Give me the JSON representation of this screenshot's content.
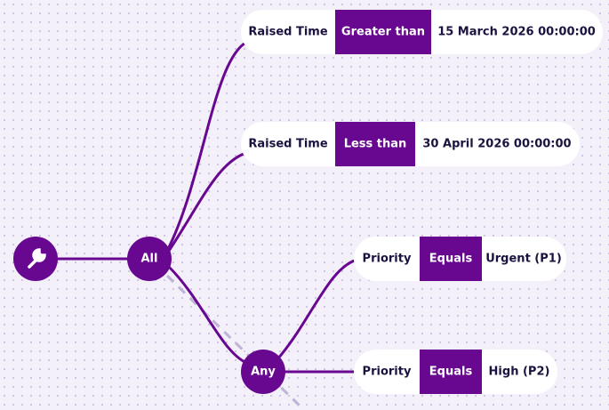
{
  "root": {
    "icon": "wrench"
  },
  "groups": [
    {
      "label": "All"
    },
    {
      "label": "Any"
    }
  ],
  "conditions": [
    {
      "field": "Raised Time",
      "operator": "Greater than",
      "value": "15 March 2026 00:00:00"
    },
    {
      "field": "Raised Time",
      "operator": "Less than",
      "value": "30 April 2026 00:00:00"
    },
    {
      "field": "Priority",
      "operator": "Equals",
      "value": "Urgent (P1)"
    },
    {
      "field": "Priority",
      "operator": "Equals",
      "value": "High (P2)"
    }
  ]
}
